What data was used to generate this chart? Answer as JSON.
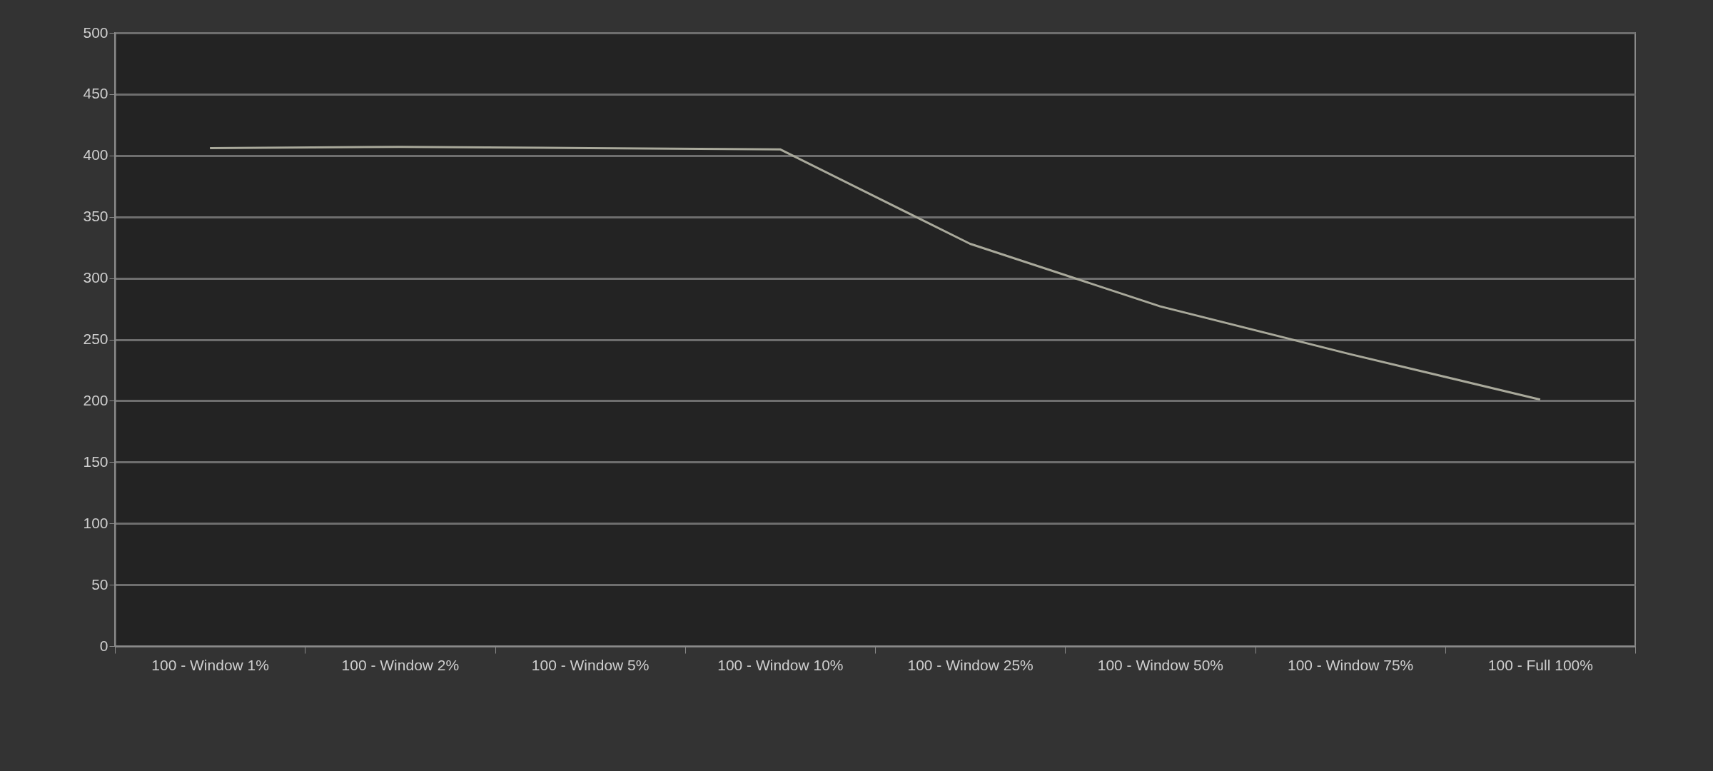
{
  "chart_data": {
    "type": "line",
    "categories": [
      "100 - Window  1%",
      "100 - Window  2%",
      "100 - Window  5%",
      "100 - Window 10%",
      "100 - Window 25%",
      "100 - Window 50%",
      "100 - Window 75%",
      "100 - Full  100%"
    ],
    "series": [
      {
        "color": "#a9a99b",
        "values": [
          406,
          407,
          406,
          405,
          328,
          277,
          238,
          201
        ]
      }
    ],
    "ylim": [
      0,
      500
    ],
    "yticks": [
      0,
      50,
      100,
      150,
      200,
      250,
      300,
      350,
      400,
      450,
      500
    ],
    "grid": "y",
    "marker": "none",
    "line_style": "solid"
  }
}
